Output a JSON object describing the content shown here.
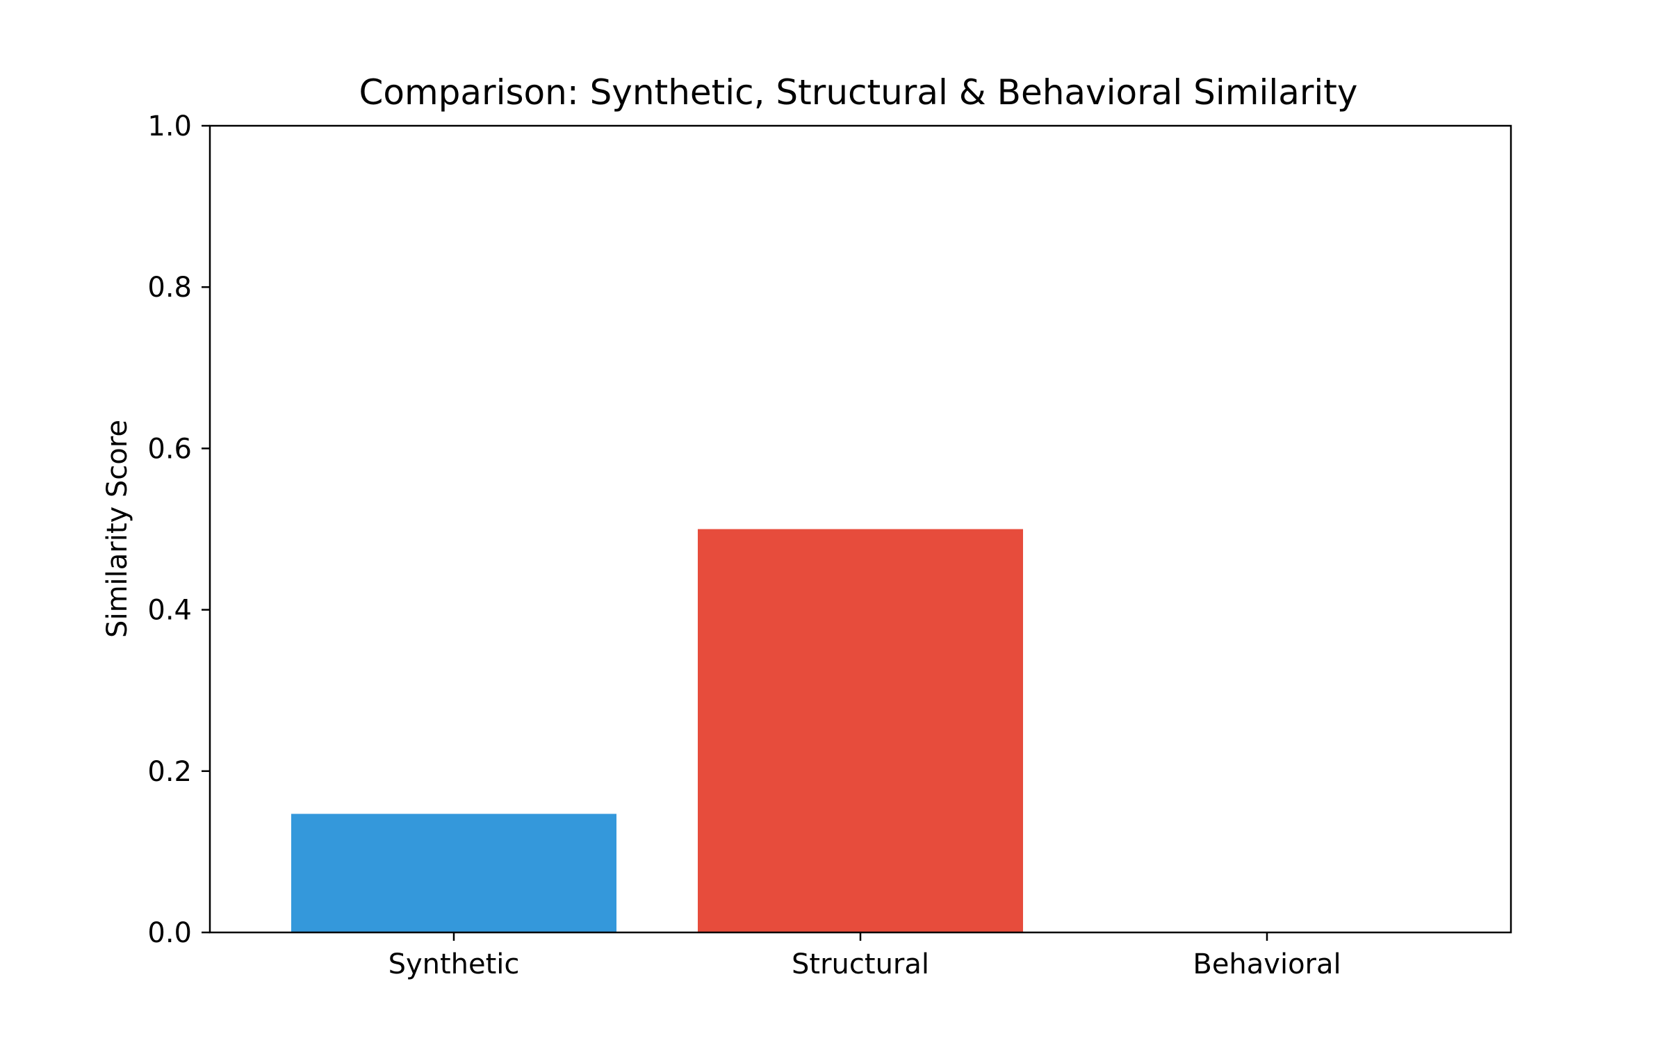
{
  "chart_data": {
    "type": "bar",
    "title": "Comparison: Synthetic, Structural & Behavioral Similarity",
    "xlabel": "",
    "ylabel": "Similarity Score",
    "categories": [
      "Synthetic",
      "Structural",
      "Behavioral"
    ],
    "values": [
      0.147,
      0.5,
      0.0
    ],
    "colors": [
      "#3498db",
      "#e74c3c",
      "#2ecc71"
    ],
    "ylim": [
      0,
      1.0
    ],
    "yticks": [
      "0.0",
      "0.2",
      "0.4",
      "0.6",
      "0.8",
      "1.0"
    ],
    "ytick_values": [
      0,
      0.2,
      0.4,
      0.6,
      0.8,
      1.0
    ],
    "grid": false,
    "legend": false
  }
}
